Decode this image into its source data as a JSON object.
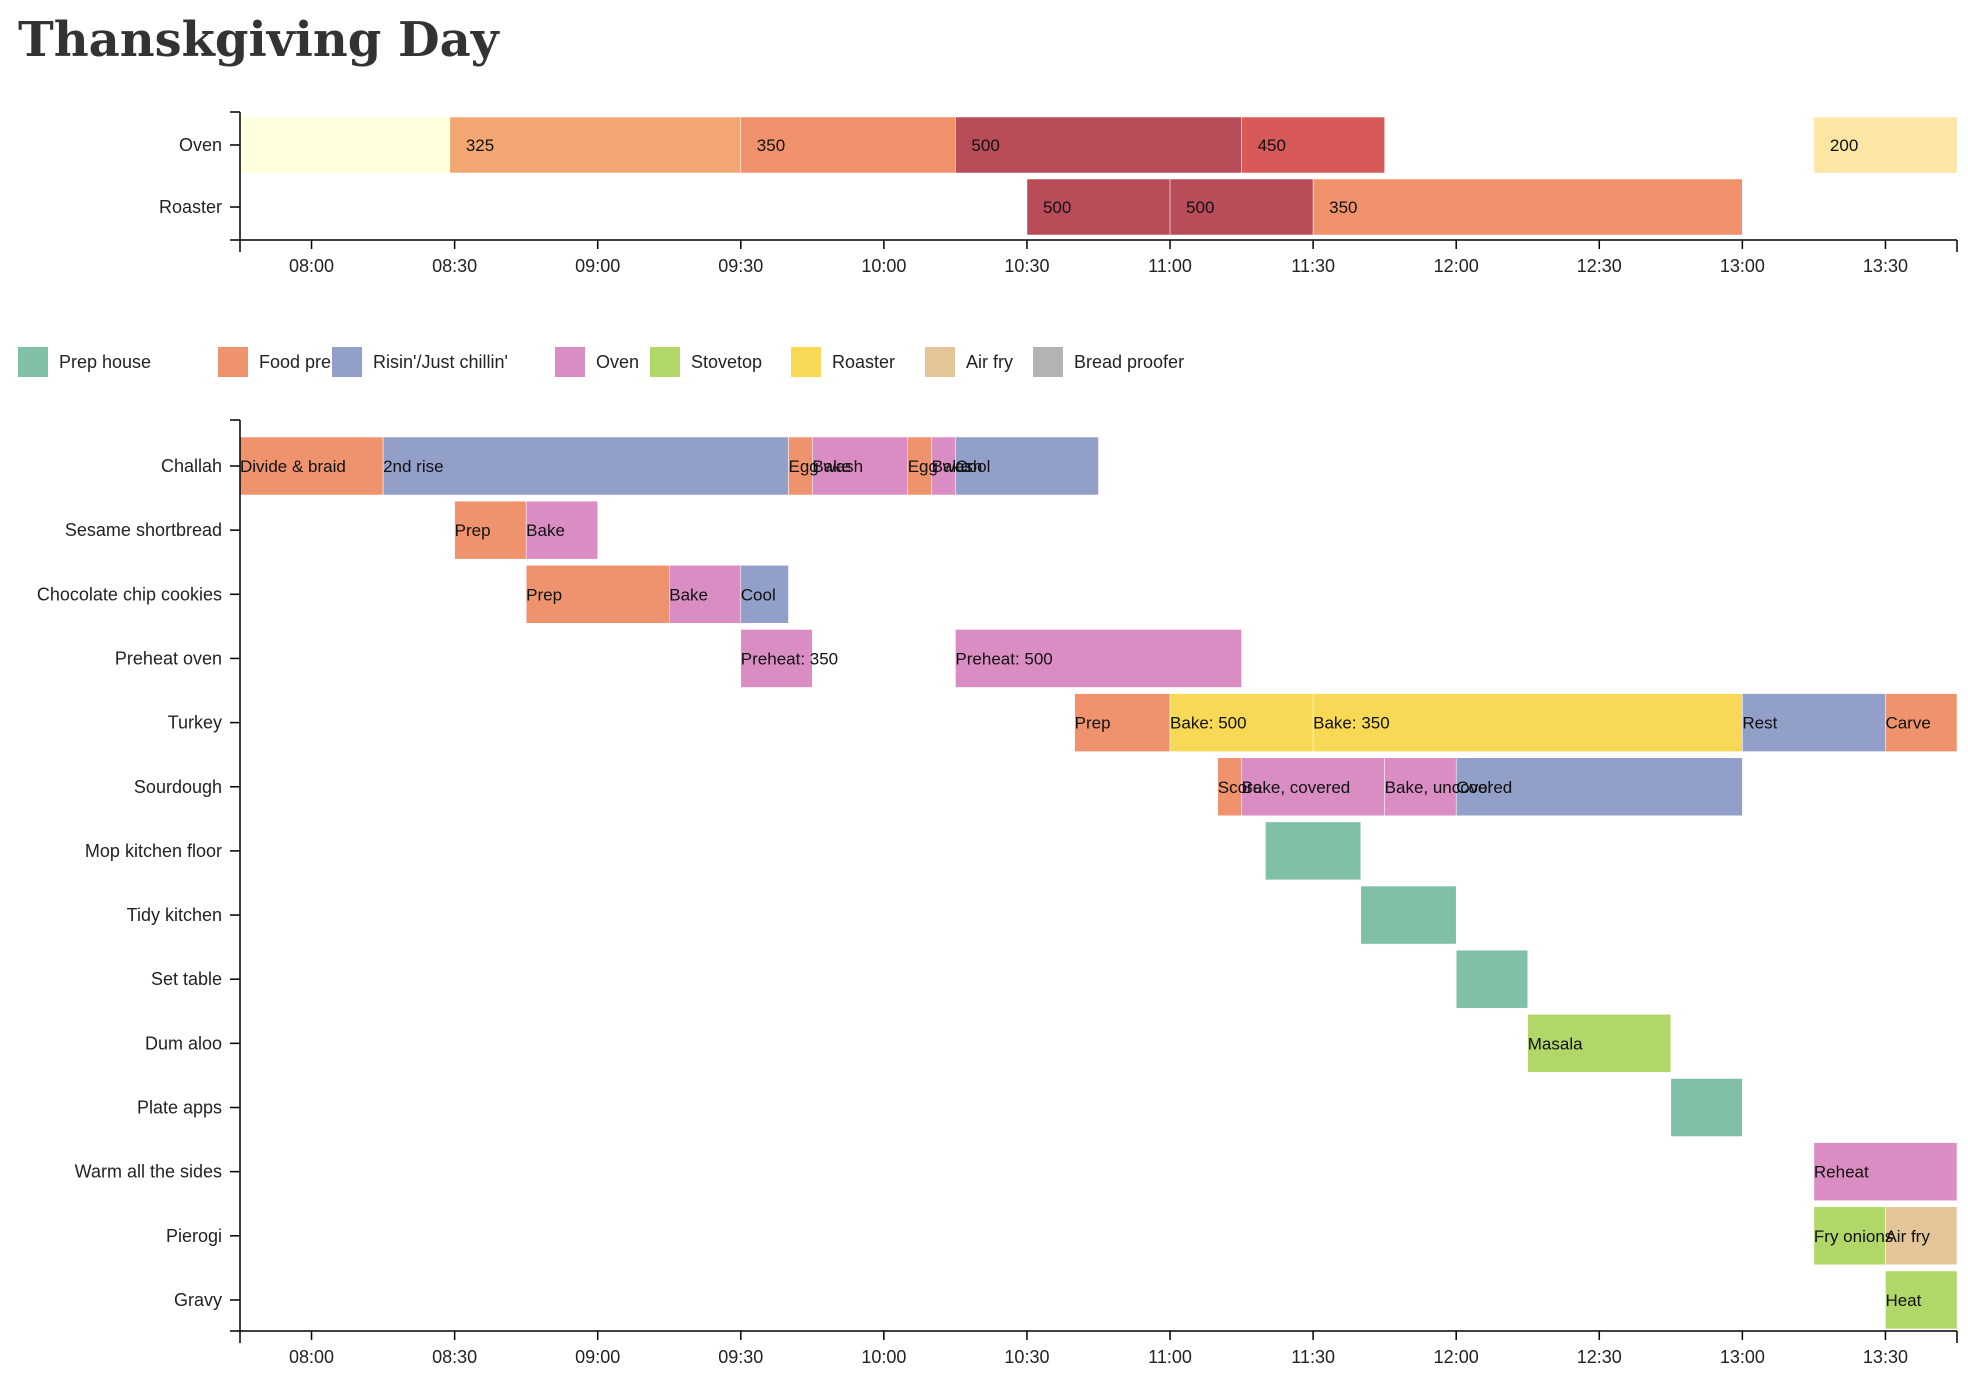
{
  "title": "Thanskgiving Day",
  "chart_data": {
    "type": "gantt",
    "time_axis": {
      "start": "07:45",
      "end": "13:45",
      "ticks": [
        "08:00",
        "08:30",
        "09:00",
        "09:30",
        "10:00",
        "10:30",
        "11:00",
        "11:30",
        "12:00",
        "12:30",
        "13:00",
        "13:30"
      ]
    },
    "temperature_chart": {
      "rows": [
        "Oven",
        "Roaster"
      ],
      "color_scale": {
        "0": "#ffffdd",
        "200": "#fbe6a3",
        "325": "#f2a772",
        "350": "#ef926b",
        "450": "#d75a59",
        "500": "#b84c59"
      },
      "segments": [
        {
          "row": "Oven",
          "start": "07:45",
          "end": "08:29",
          "value": 0,
          "label": ""
        },
        {
          "row": "Oven",
          "start": "08:29",
          "end": "09:30",
          "value": 325,
          "label": "325"
        },
        {
          "row": "Oven",
          "start": "09:30",
          "end": "10:15",
          "value": 350,
          "label": "350"
        },
        {
          "row": "Oven",
          "start": "10:15",
          "end": "11:15",
          "value": 500,
          "label": "500"
        },
        {
          "row": "Oven",
          "start": "11:15",
          "end": "11:45",
          "value": 450,
          "label": "450"
        },
        {
          "row": "Oven",
          "start": "13:15",
          "end": "13:45",
          "value": 200,
          "label": "200"
        },
        {
          "row": "Roaster",
          "start": "10:30",
          "end": "11:00",
          "value": 500,
          "label": "500"
        },
        {
          "row": "Roaster",
          "start": "11:00",
          "end": "11:30",
          "value": 500,
          "label": "500"
        },
        {
          "row": "Roaster",
          "start": "11:30",
          "end": "13:00",
          "value": 350,
          "label": "350"
        }
      ]
    },
    "legend": [
      {
        "name": "Prep house",
        "color": "#80c0a6"
      },
      {
        "name": "Food prep",
        "color": "#ee936d"
      },
      {
        "name": "Risin'/Just chillin'",
        "color": "#92a0c9"
      },
      {
        "name": "Oven",
        "color": "#da8dc2"
      },
      {
        "name": "Stovetop",
        "color": "#b0d767"
      },
      {
        "name": "Roaster",
        "color": "#f7d955"
      },
      {
        "name": "Air fry",
        "color": "#e3c597"
      },
      {
        "name": "Bread proofer",
        "color": "#b3b3b3"
      }
    ],
    "task_rows": [
      "Challah",
      "Sesame shortbread",
      "Chocolate chip cookies",
      "Preheat oven",
      "Turkey",
      "Sourdough",
      "Mop kitchen floor",
      "Tidy kitchen",
      "Set table",
      "Dum aloo",
      "Plate apps",
      "Warm all the sides",
      "Pierogi",
      "Gravy"
    ],
    "tasks": [
      {
        "row": "Challah",
        "start": "07:45",
        "end": "08:15",
        "category": "Food prep",
        "label": "Divide & braid"
      },
      {
        "row": "Challah",
        "start": "08:15",
        "end": "09:40",
        "category": "Risin'/Just chillin'",
        "label": "2nd rise"
      },
      {
        "row": "Challah",
        "start": "09:40",
        "end": "09:45",
        "category": "Food prep",
        "label": "Egg wash"
      },
      {
        "row": "Challah",
        "start": "09:45",
        "end": "10:05",
        "category": "Oven",
        "label": "Bake"
      },
      {
        "row": "Challah",
        "start": "10:05",
        "end": "10:10",
        "category": "Food prep",
        "label": "Egg wash"
      },
      {
        "row": "Challah",
        "start": "10:10",
        "end": "10:15",
        "category": "Oven",
        "label": "Bake"
      },
      {
        "row": "Challah",
        "start": "10:15",
        "end": "10:45",
        "category": "Risin'/Just chillin'",
        "label": "Cool"
      },
      {
        "row": "Sesame shortbread",
        "start": "08:30",
        "end": "08:45",
        "category": "Food prep",
        "label": "Prep"
      },
      {
        "row": "Sesame shortbread",
        "start": "08:45",
        "end": "09:00",
        "category": "Oven",
        "label": "Bake"
      },
      {
        "row": "Chocolate chip cookies",
        "start": "08:45",
        "end": "09:15",
        "category": "Food prep",
        "label": "Prep"
      },
      {
        "row": "Chocolate chip cookies",
        "start": "09:15",
        "end": "09:30",
        "category": "Oven",
        "label": "Bake"
      },
      {
        "row": "Chocolate chip cookies",
        "start": "09:30",
        "end": "09:40",
        "category": "Risin'/Just chillin'",
        "label": "Cool"
      },
      {
        "row": "Preheat oven",
        "start": "09:30",
        "end": "09:45",
        "category": "Oven",
        "label": "Preheat: 350"
      },
      {
        "row": "Preheat oven",
        "start": "10:15",
        "end": "11:15",
        "category": "Oven",
        "label": "Preheat: 500"
      },
      {
        "row": "Turkey",
        "start": "10:40",
        "end": "11:00",
        "category": "Food prep",
        "label": "Prep"
      },
      {
        "row": "Turkey",
        "start": "11:00",
        "end": "11:30",
        "category": "Roaster",
        "label": "Bake: 500"
      },
      {
        "row": "Turkey",
        "start": "11:30",
        "end": "13:00",
        "category": "Roaster",
        "label": "Bake: 350"
      },
      {
        "row": "Turkey",
        "start": "13:00",
        "end": "13:30",
        "category": "Risin'/Just chillin'",
        "label": "Rest"
      },
      {
        "row": "Turkey",
        "start": "13:30",
        "end": "13:45",
        "category": "Food prep",
        "label": "Carve"
      },
      {
        "row": "Sourdough",
        "start": "11:10",
        "end": "11:15",
        "category": "Food prep",
        "label": "Score"
      },
      {
        "row": "Sourdough",
        "start": "11:15",
        "end": "11:45",
        "category": "Oven",
        "label": "Bake, covered"
      },
      {
        "row": "Sourdough",
        "start": "11:45",
        "end": "12:00",
        "category": "Oven",
        "label": "Bake, uncovered"
      },
      {
        "row": "Sourdough",
        "start": "12:00",
        "end": "13:00",
        "category": "Risin'/Just chillin'",
        "label": "Cool"
      },
      {
        "row": "Mop kitchen floor",
        "start": "11:20",
        "end": "11:40",
        "category": "Prep house",
        "label": ""
      },
      {
        "row": "Tidy kitchen",
        "start": "11:40",
        "end": "12:00",
        "category": "Prep house",
        "label": ""
      },
      {
        "row": "Set table",
        "start": "12:00",
        "end": "12:15",
        "category": "Prep house",
        "label": ""
      },
      {
        "row": "Dum aloo",
        "start": "12:15",
        "end": "12:45",
        "category": "Stovetop",
        "label": "Masala"
      },
      {
        "row": "Plate apps",
        "start": "12:45",
        "end": "13:00",
        "category": "Prep house",
        "label": ""
      },
      {
        "row": "Warm all the sides",
        "start": "13:15",
        "end": "13:45",
        "category": "Oven",
        "label": "Reheat"
      },
      {
        "row": "Pierogi",
        "start": "13:15",
        "end": "13:30",
        "category": "Stovetop",
        "label": "Fry onions"
      },
      {
        "row": "Pierogi",
        "start": "13:30",
        "end": "13:45",
        "category": "Air fry",
        "label": "Air fry"
      },
      {
        "row": "Gravy",
        "start": "13:30",
        "end": "13:45",
        "category": "Stovetop",
        "label": "Heat"
      }
    ]
  }
}
